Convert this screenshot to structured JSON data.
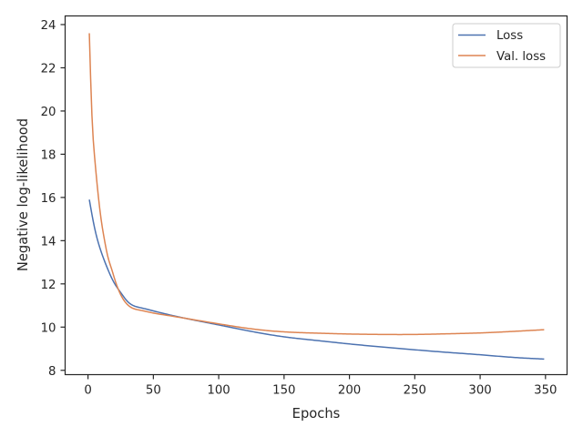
{
  "chart_data": {
    "type": "line",
    "title": "",
    "xlabel": "Epochs",
    "ylabel": "Negative log-likelihood",
    "xlim": [
      -17.5,
      366.5
    ],
    "ylim": [
      7.8,
      24.4
    ],
    "xticks": [
      0,
      50,
      100,
      150,
      200,
      250,
      300,
      350
    ],
    "yticks": [
      8,
      10,
      12,
      14,
      16,
      18,
      20,
      22,
      24
    ],
    "grid": false,
    "legend_position": "top-right",
    "series": [
      {
        "name": "Loss",
        "color": "#4c72b0",
        "x": [
          1,
          5,
          10,
          15,
          20,
          25,
          30,
          40,
          50,
          60,
          75,
          100,
          125,
          150,
          175,
          200,
          225,
          250,
          275,
          300,
          325,
          349
        ],
        "y": [
          15.9,
          14.6,
          13.5,
          12.7,
          12.05,
          11.6,
          11.2,
          10.9,
          10.75,
          10.6,
          10.4,
          10.1,
          9.8,
          9.55,
          9.38,
          9.22,
          9.08,
          8.95,
          8.83,
          8.72,
          8.6,
          8.52
        ]
      },
      {
        "name": "Val. loss",
        "color": "#dd8452",
        "x": [
          1,
          3,
          5,
          8,
          10,
          13,
          15,
          18,
          20,
          25,
          30,
          40,
          50,
          60,
          75,
          100,
          125,
          150,
          175,
          200,
          225,
          250,
          275,
          300,
          325,
          349
        ],
        "y": [
          23.6,
          19.8,
          17.9,
          16.0,
          15.0,
          13.9,
          13.3,
          12.7,
          12.3,
          11.5,
          11.05,
          10.78,
          10.65,
          10.55,
          10.4,
          10.15,
          9.92,
          9.78,
          9.72,
          9.68,
          9.66,
          9.66,
          9.69,
          9.73,
          9.8,
          9.88
        ]
      }
    ]
  }
}
